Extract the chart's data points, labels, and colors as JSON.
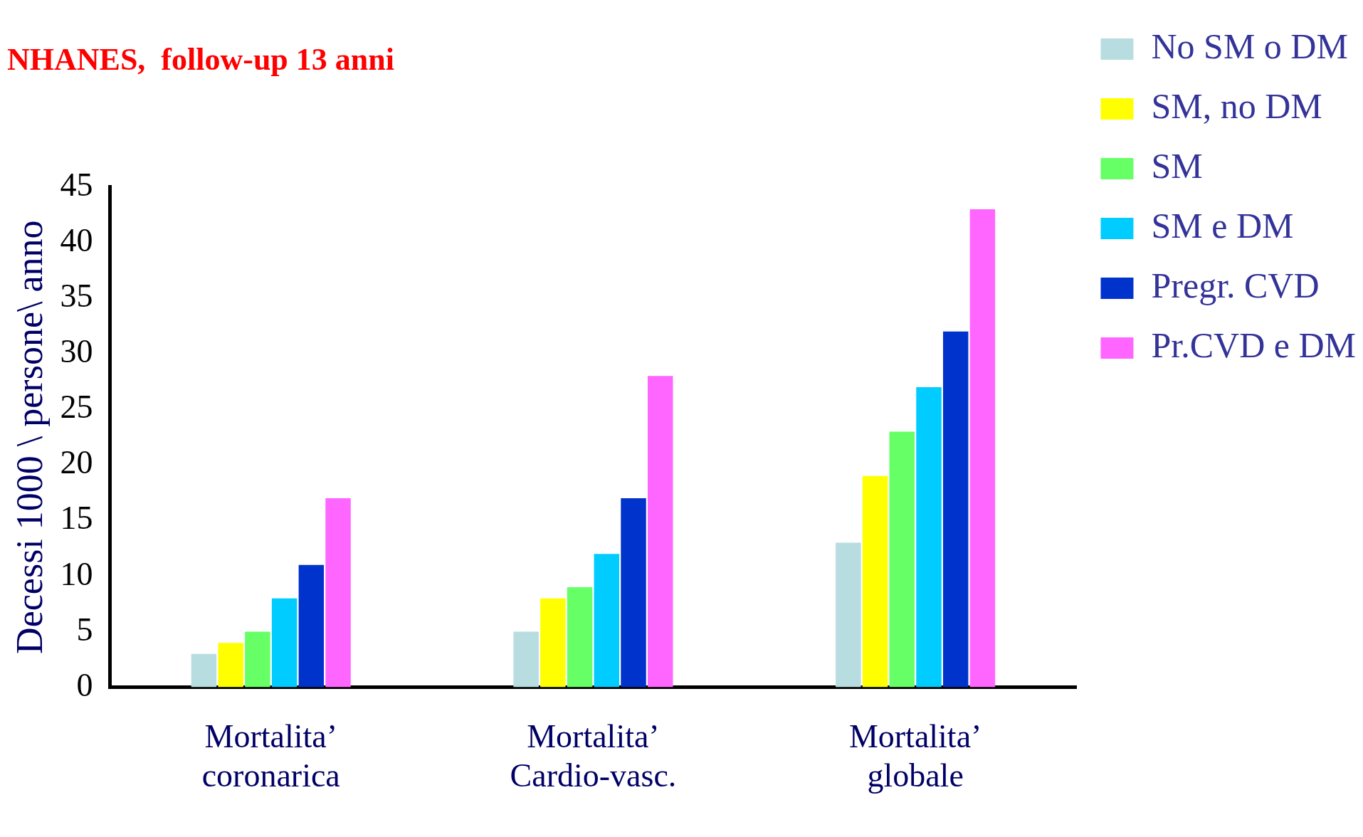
{
  "chart_data": {
    "type": "bar",
    "title": "NHANES,  follow-up 13 anni",
    "ylabel": "Decessi 1000 \\ persone\\ anno",
    "categories": [
      "Mortalita’\ncoronarica",
      "Mortalita’\nCardio-vasc.",
      "Mortalita’\nglobale"
    ],
    "series": [
      {
        "name": "No SM o DM",
        "color": "#b8dde0",
        "values": [
          3,
          5,
          13
        ]
      },
      {
        "name": "SM, no DM",
        "color": "#ffff00",
        "values": [
          4,
          8,
          19
        ]
      },
      {
        "name": "SM",
        "color": "#66ff66",
        "values": [
          5,
          9,
          23
        ]
      },
      {
        "name": "SM e DM",
        "color": "#00ccff",
        "values": [
          8,
          12,
          27
        ]
      },
      {
        "name": "Pregr. CVD",
        "color": "#0033cc",
        "values": [
          11,
          17,
          32
        ]
      },
      {
        "name": "Pr.CVD e DM",
        "color": "#ff66ff",
        "values": [
          17,
          28,
          43
        ]
      }
    ],
    "ylim": [
      0,
      45
    ],
    "yticks": [
      0,
      5,
      10,
      15,
      20,
      25,
      30,
      35,
      40,
      45
    ],
    "grid": false,
    "legend": "right"
  }
}
